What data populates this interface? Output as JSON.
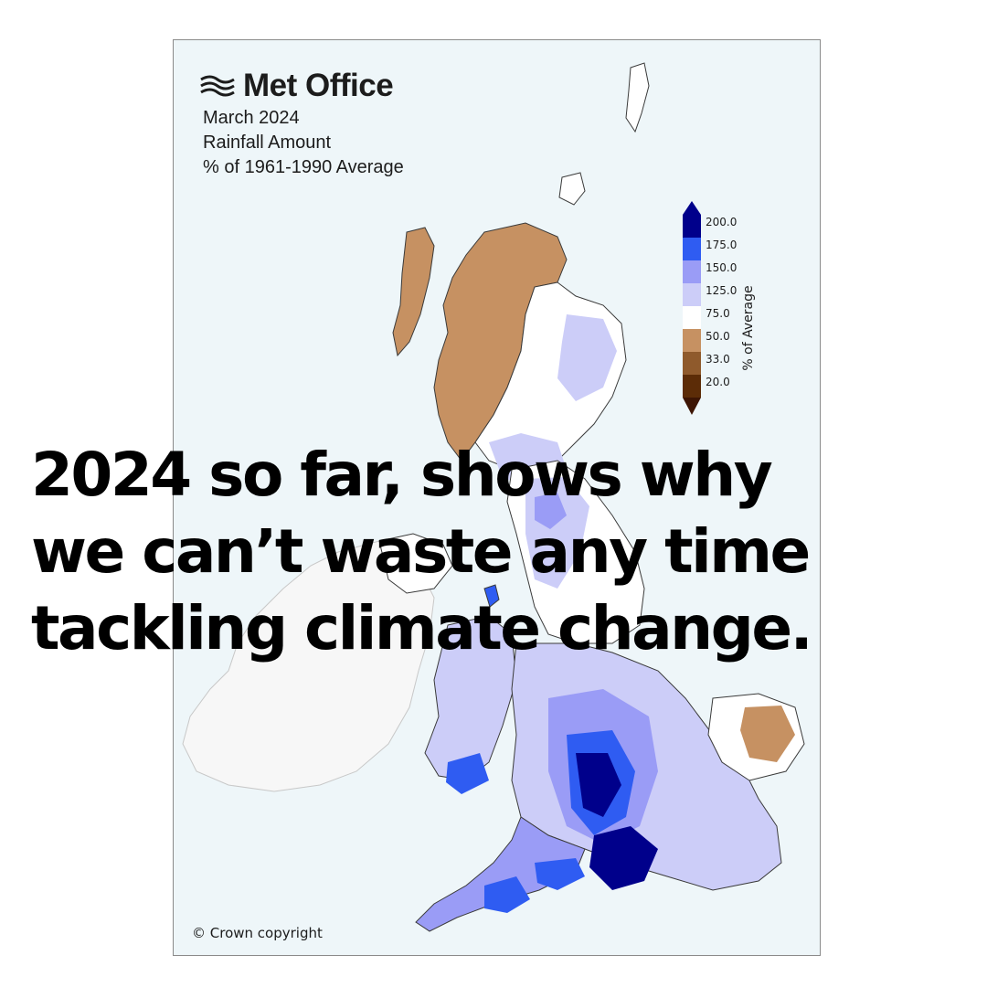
{
  "logo": {
    "text": "Met Office",
    "icon": "met-office-waves-icon"
  },
  "map_title": {
    "line1": "March 2024",
    "line2": "Rainfall Amount",
    "line3": "% of 1961-1990 Average"
  },
  "colorbar": {
    "label": "% of Average",
    "ticks": [
      "200.0",
      "175.0",
      "150.0",
      "125.0",
      "75.0",
      "50.0",
      "33.0",
      "20.0"
    ],
    "colors": [
      "#00008b",
      "#2f5cf2",
      "#9a9cf6",
      "#cccdf8",
      "#ffffff",
      "#c69162",
      "#8f5a2c",
      "#5c2c07"
    ],
    "overflow_high_color": "#00008b",
    "overflow_low_color": "#3d1504"
  },
  "colors": {
    "sea": "#eef6f9",
    "ireland_land": "#f6f6f6",
    "borders": "#3a3a3a"
  },
  "copyright": "© Crown copyright",
  "headline": {
    "line1": "2024 so far, shows why",
    "line2": "we can’t waste any time",
    "line3": "tackling climate change."
  }
}
